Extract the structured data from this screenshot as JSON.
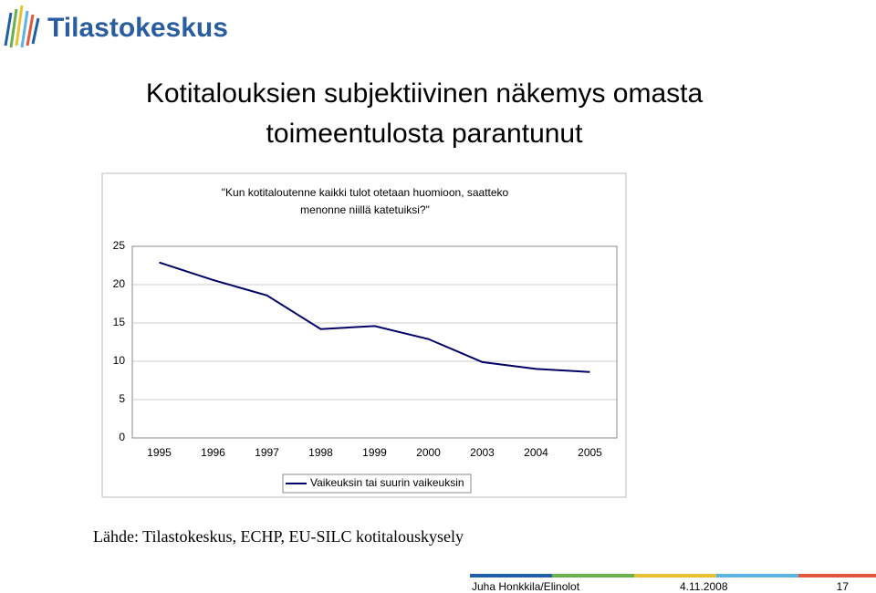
{
  "header": {
    "logo_text": "Tilastokeskus"
  },
  "slide_title": [
    "Kotitalouksien subjektiivinen näkemys omasta",
    "toimeentulosta parantunut"
  ],
  "chart_data": {
    "type": "line",
    "title": [
      "\"Kun kotitaloutenne kaikki tulot otetaan huomioon, saatteko",
      "menonne niillä katetuiksi?\""
    ],
    "categories": [
      "1995",
      "1996",
      "1997",
      "1998",
      "1999",
      "2000",
      "2003",
      "2004",
      "2005"
    ],
    "series": [
      {
        "name": "Vaikeuksin tai suurin vaikeuksin",
        "color": "#000066",
        "values": [
          22.9,
          20.6,
          18.6,
          14.2,
          14.6,
          12.9,
          9.9,
          9.0,
          8.6
        ]
      }
    ],
    "ylim": [
      0,
      25
    ],
    "yticks": [
      0,
      5,
      10,
      15,
      20,
      25
    ],
    "grid": true,
    "legend": "bottom"
  },
  "source": "Lähde: Tilastokeskus, ECHP, EU-SILC kotitalouskysely",
  "footer": {
    "author": "Juha Honkkila/Elinolot",
    "date": "4.11.2008",
    "page": "17"
  }
}
